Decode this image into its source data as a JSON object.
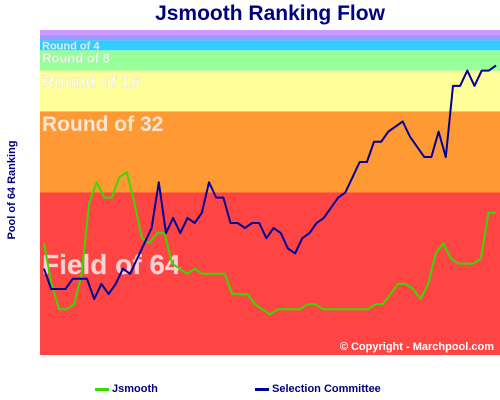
{
  "chart_data": {
    "type": "line",
    "title": "Jsmooth Ranking Flow",
    "ylabel": "Pool of 64 Ranking",
    "copyright": "© Copyright - Marchpool.com",
    "zones": [
      {
        "label": "Field of 64",
        "from": 64,
        "to": 32,
        "color": "#ff4444"
      },
      {
        "label": "Round of 32",
        "from": 32,
        "to": 16,
        "color": "#ff9933"
      },
      {
        "label": "Round of 16",
        "from": 16,
        "to": 8,
        "color": "#ffff99"
      },
      {
        "label": "Round of 8",
        "from": 8,
        "to": 4,
        "color": "#99ff99"
      },
      {
        "label": "Round of 4",
        "from": 4,
        "to": 2,
        "color": "#33ccff"
      },
      {
        "label": "",
        "from": 2,
        "to": 1,
        "color": "#9999ff"
      },
      {
        "label": "",
        "from": 1,
        "to": 0,
        "color": "#cc99ff"
      }
    ],
    "series": [
      {
        "name": "Jsmooth",
        "color": "#33dd00",
        "values": [
          42,
          50,
          55,
          55,
          54,
          48,
          34,
          30,
          33,
          33,
          29,
          28,
          34,
          41,
          42,
          40,
          40,
          46,
          47,
          48,
          47,
          48,
          48,
          48,
          48,
          52,
          52,
          52,
          54,
          55,
          56,
          55,
          55,
          55,
          55,
          54,
          54,
          55,
          55,
          55,
          55,
          55,
          55,
          55,
          54,
          54,
          52,
          50,
          50,
          51,
          53,
          50,
          44,
          42,
          45,
          46,
          46,
          46,
          45,
          36,
          36
        ]
      },
      {
        "name": "Selection Committee",
        "color": "#000099",
        "values": [
          47,
          51,
          51,
          51,
          49,
          49,
          49,
          53,
          50,
          52,
          50,
          47,
          48,
          45,
          42,
          39,
          30,
          40,
          37,
          40,
          37,
          38,
          36,
          30,
          33,
          33,
          38,
          38,
          39,
          38,
          38,
          41,
          39,
          40,
          43,
          44,
          41,
          40,
          38,
          37,
          35,
          33,
          32,
          29,
          26,
          26,
          22,
          22,
          20,
          19,
          18,
          21,
          23,
          25,
          25,
          20,
          25,
          11,
          11,
          8,
          11,
          8,
          8,
          7
        ]
      }
    ]
  },
  "legend": {
    "jsmooth": "Jsmooth",
    "committee": "Selection Committee"
  }
}
